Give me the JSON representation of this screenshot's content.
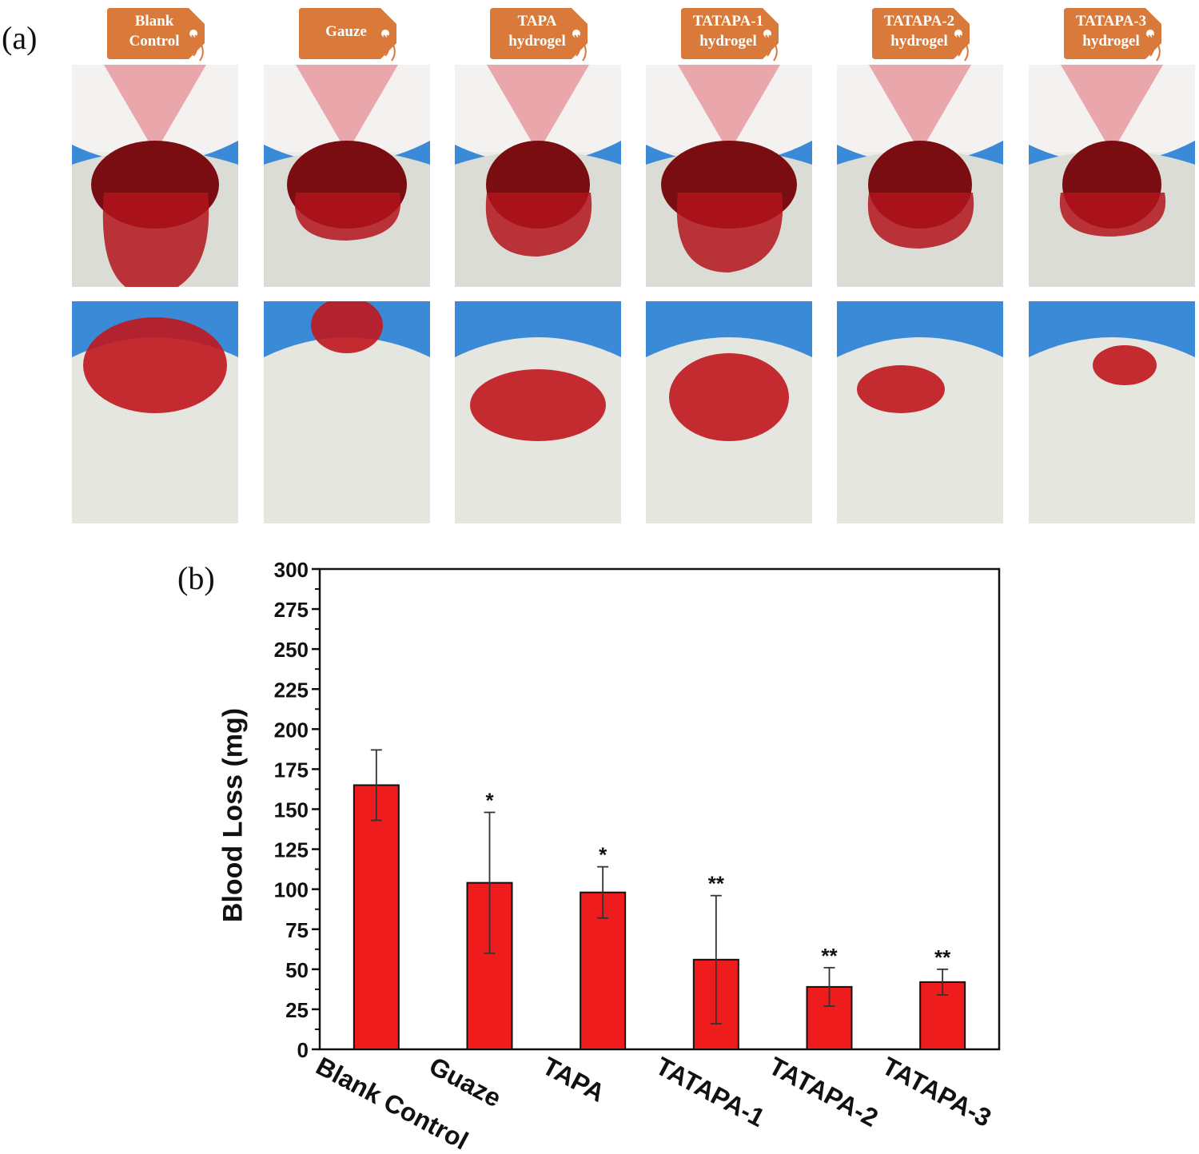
{
  "panel_a": {
    "label": "(a)",
    "groups": [
      {
        "line1": "Blank",
        "line2": "Control"
      },
      {
        "line1": "Gauze",
        "line2": ""
      },
      {
        "line1": "TAPA",
        "line2": "hydrogel"
      },
      {
        "line1": "TATAPA-1",
        "line2": "hydrogel"
      },
      {
        "line1": "TATAPA-2",
        "line2": "hydrogel"
      },
      {
        "line1": "TATAPA-3",
        "line2": "hydrogel"
      }
    ],
    "tag_color": "#d9793a"
  },
  "panel_b": {
    "label": "(b)"
  },
  "chart_data": {
    "type": "bar",
    "categories": [
      "Blank Control",
      "Guaze",
      "TAPA",
      "TATAPA-1",
      "TATAPA-2",
      "TATAPA-3"
    ],
    "values": [
      165,
      104,
      98,
      56,
      39,
      42
    ],
    "error": [
      22,
      44,
      16,
      40,
      12,
      8
    ],
    "significance": [
      "",
      "*",
      "*",
      "**",
      "**",
      "**"
    ],
    "ylabel": "Blood Loss (mg)",
    "xlabel": "",
    "ylim": [
      0,
      300
    ],
    "yticks": [
      0,
      25,
      50,
      75,
      100,
      125,
      150,
      175,
      200,
      225,
      250,
      275,
      300
    ],
    "bar_color": "#ee1c1c",
    "grid": false
  }
}
